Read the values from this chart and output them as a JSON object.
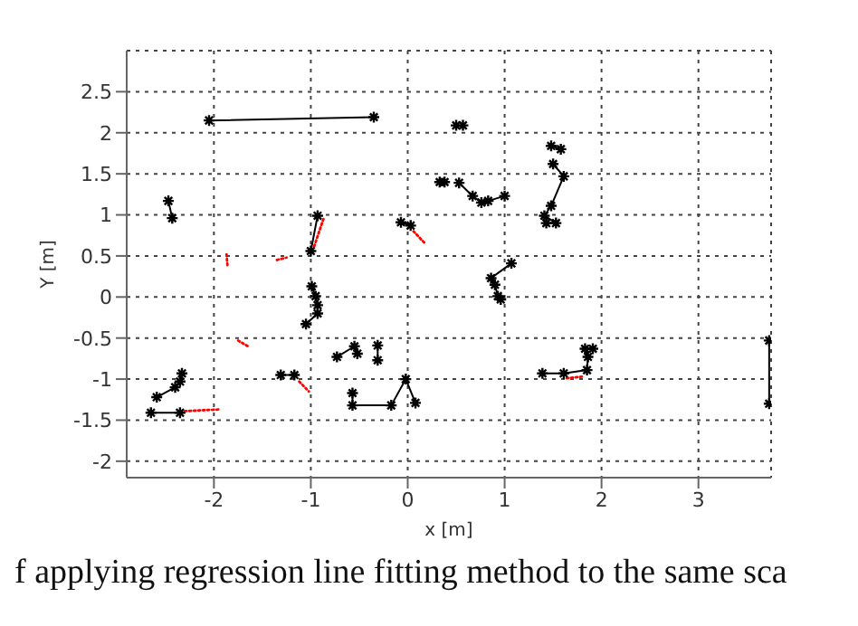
{
  "chart_data": {
    "type": "line",
    "xlabel": "x [m]",
    "ylabel": "Y [m]",
    "xlim": [
      -2.9,
      3.75
    ],
    "ylim": [
      -2.2,
      3.0
    ],
    "xticks": [
      -2,
      -1,
      0,
      1,
      2,
      3
    ],
    "yticks": [
      -2,
      -1.5,
      -1,
      -0.5,
      0,
      0.5,
      1,
      1.5,
      2,
      2.5
    ],
    "grid": true,
    "legend": false,
    "annotations": [
      "f applying regression line fitting method to the same sca"
    ],
    "series": [
      {
        "color": "#ff0000",
        "marker": "none",
        "line_style": "dotted",
        "x": [
          -2.3,
          -1.95
        ],
        "values": [
          -1.39,
          -1.37
        ]
      },
      {
        "color": "#ff0000",
        "marker": "none",
        "line_style": "dotted",
        "x": [
          -1.87,
          -1.86
        ],
        "values": [
          0.52,
          0.38
        ]
      },
      {
        "color": "#ff0000",
        "marker": "none",
        "line_style": "dotted",
        "x": [
          -1.35,
          -1.25
        ],
        "values": [
          0.45,
          0.48
        ]
      },
      {
        "color": "#ff0000",
        "marker": "none",
        "line_style": "dotted",
        "x": [
          -0.87,
          -0.97
        ],
        "values": [
          0.95,
          0.6
        ]
      },
      {
        "color": "#ff0000",
        "marker": "none",
        "line_style": "dotted",
        "x": [
          -1.75,
          -1.65
        ],
        "values": [
          -0.53,
          -0.6
        ]
      },
      {
        "color": "#ff0000",
        "marker": "none",
        "line_style": "dotted",
        "x": [
          -1.12,
          -1.02
        ],
        "values": [
          -1.03,
          -1.15
        ]
      },
      {
        "color": "#ff0000",
        "marker": "none",
        "line_style": "dotted",
        "x": [
          0.06,
          0.18
        ],
        "values": [
          0.8,
          0.65
        ]
      },
      {
        "color": "#ff0000",
        "marker": "none",
        "line_style": "dotted",
        "x": [
          1.64,
          1.8
        ],
        "values": [
          -0.99,
          -0.97
        ]
      },
      {
        "color": "#000000",
        "marker": "cross",
        "line_style": "solid",
        "x": [
          -2.05,
          -0.35
        ],
        "values": [
          2.15,
          2.19
        ]
      },
      {
        "color": "#000000",
        "marker": "cross",
        "line_style": "solid",
        "x": [
          -2.47,
          -2.43
        ],
        "values": [
          1.17,
          0.96
        ]
      },
      {
        "color": "#000000",
        "marker": "cross",
        "line_style": "solid",
        "x": [
          -0.93,
          -1.0
        ],
        "values": [
          0.99,
          0.56
        ]
      },
      {
        "color": "#000000",
        "marker": "cross",
        "line_style": "solid",
        "x": [
          -0.99,
          -0.95,
          -0.93,
          -0.93,
          -1.05
        ],
        "values": [
          0.13,
          0.01,
          -0.1,
          -0.2,
          -0.33
        ]
      },
      {
        "color": "#000000",
        "marker": "cross",
        "line_style": "solid",
        "x": [
          -0.07,
          0.03
        ],
        "values": [
          0.91,
          0.87
        ]
      },
      {
        "type": "scatter",
        "color": "#000000",
        "marker": "cross",
        "x": [
          0.5,
          0.57
        ],
        "values": [
          2.09,
          2.09
        ]
      },
      {
        "type": "scatter",
        "color": "#000000",
        "marker": "cross",
        "x": [
          0.33,
          0.38
        ],
        "values": [
          1.4,
          1.4
        ]
      },
      {
        "color": "#000000",
        "marker": "cross",
        "line_style": "solid",
        "x": [
          0.53,
          0.67,
          0.76,
          0.83,
          1.0
        ],
        "values": [
          1.39,
          1.23,
          1.15,
          1.17,
          1.23
        ]
      },
      {
        "color": "#000000",
        "marker": "cross",
        "line_style": "solid",
        "x": [
          1.48,
          1.58
        ],
        "values": [
          1.84,
          1.8
        ]
      },
      {
        "color": "#000000",
        "marker": "cross",
        "line_style": "solid",
        "x": [
          1.5,
          1.61,
          1.48,
          1.41,
          1.53,
          1.43
        ],
        "values": [
          1.62,
          1.47,
          1.11,
          0.99,
          0.9,
          0.9
        ]
      },
      {
        "color": "#000000",
        "marker": "cross",
        "line_style": "solid",
        "x": [
          1.07,
          0.86,
          0.9,
          0.93,
          0.96
        ],
        "values": [
          0.41,
          0.23,
          0.15,
          0.01,
          -0.03
        ]
      },
      {
        "color": "#000000",
        "marker": "cross",
        "line_style": "solid",
        "x": [
          -2.33,
          -2.35,
          -2.4,
          -2.59
        ],
        "values": [
          -0.93,
          -1.03,
          -1.1,
          -1.22
        ]
      },
      {
        "color": "#000000",
        "marker": "cross",
        "line_style": "solid",
        "x": [
          -2.65,
          -2.35
        ],
        "values": [
          -1.41,
          -1.41
        ]
      },
      {
        "color": "#000000",
        "marker": "cross",
        "line_style": "solid",
        "x": [
          -1.31,
          -1.17
        ],
        "values": [
          -0.95,
          -0.95
        ]
      },
      {
        "color": "#000000",
        "marker": "cross",
        "line_style": "solid",
        "x": [
          -0.73,
          -0.55,
          -0.52
        ],
        "values": [
          -0.73,
          -0.6,
          -0.69
        ]
      },
      {
        "color": "#000000",
        "marker": "cross",
        "line_style": "solid",
        "x": [
          -0.31,
          -0.31
        ],
        "values": [
          -0.59,
          -0.77
        ]
      },
      {
        "color": "#000000",
        "marker": "cross",
        "line_style": "solid",
        "x": [
          -0.57,
          -0.57,
          -0.17,
          -0.02,
          0.08
        ],
        "values": [
          -1.17,
          -1.32,
          -1.32,
          -1.0,
          -1.29
        ]
      },
      {
        "color": "#000000",
        "marker": "cross",
        "line_style": "solid",
        "x": [
          1.39,
          1.61,
          1.85,
          1.86,
          1.83,
          1.91
        ],
        "values": [
          -0.93,
          -0.93,
          -0.89,
          -0.73,
          -0.63,
          -0.63
        ]
      },
      {
        "color": "#000000",
        "marker": "cross",
        "line_style": "solid",
        "x": [
          3.73,
          3.73
        ],
        "values": [
          -0.53,
          -1.3
        ]
      }
    ]
  }
}
